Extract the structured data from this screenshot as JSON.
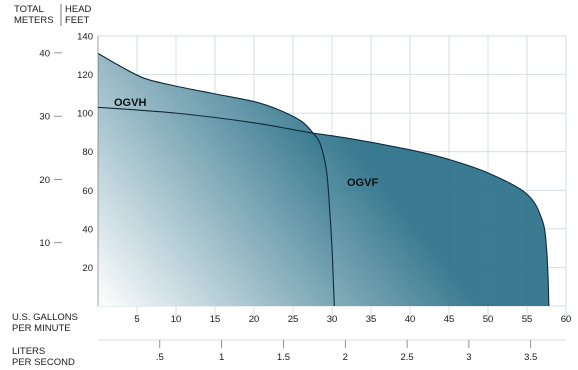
{
  "chart_data": {
    "type": "area",
    "axes": {
      "left_meters_label": [
        "TOTAL",
        "METERS"
      ],
      "left_feet_label": [
        "HEAD",
        "FEET"
      ],
      "bottom_gpm_label": [
        "U.S. GALLONS",
        "PER MINUTE"
      ],
      "bottom_lps_label": [
        "LITERS",
        "PER SECOND"
      ],
      "feet_ticks": [
        "20",
        "40",
        "60",
        "80",
        "100",
        "120",
        "140"
      ],
      "meters_ticks": [
        "10",
        "20",
        "30",
        "40"
      ],
      "gpm_ticks": [
        "5",
        "10",
        "15",
        "20",
        "25",
        "30",
        "35",
        "40",
        "45",
        "50",
        "55",
        "60"
      ],
      "lps_ticks": [
        ".5",
        "1",
        "1.5",
        "2",
        "2.5",
        "3",
        "3.5"
      ],
      "xlim_gpm": [
        0,
        60
      ],
      "ylim_feet": [
        0,
        140
      ]
    },
    "grid": true,
    "series": [
      {
        "name": "OGVH",
        "unit_x": "gpm",
        "unit_y": "ft",
        "points": [
          [
            0,
            131
          ],
          [
            3,
            124
          ],
          [
            6,
            118
          ],
          [
            10,
            114
          ],
          [
            15,
            110
          ],
          [
            20,
            106
          ],
          [
            23,
            102
          ],
          [
            26,
            96
          ],
          [
            27.5,
            90
          ],
          [
            28.5,
            84
          ],
          [
            29.3,
            70
          ],
          [
            29.7,
            50
          ],
          [
            30,
            30
          ],
          [
            30.2,
            10
          ],
          [
            30.3,
            0
          ]
        ]
      },
      {
        "name": "OGVF",
        "unit_x": "gpm",
        "unit_y": "ft",
        "points": [
          [
            0,
            103
          ],
          [
            10,
            100
          ],
          [
            20,
            95
          ],
          [
            27,
            90
          ],
          [
            32,
            87
          ],
          [
            40,
            81
          ],
          [
            45,
            76
          ],
          [
            50,
            69
          ],
          [
            55,
            58
          ],
          [
            57,
            44
          ],
          [
            57.5,
            30
          ],
          [
            57.7,
            15
          ],
          [
            57.8,
            0
          ]
        ]
      }
    ],
    "series_labels": {
      "OGVH": "OGVH",
      "OGVF": "OGVF"
    },
    "colors": {
      "fill_dark": "#2a7088",
      "fill_light": "#ffffff",
      "line": "#0e2a3a",
      "grid": "#c8d2d8",
      "axis_tick": "#666666"
    }
  }
}
